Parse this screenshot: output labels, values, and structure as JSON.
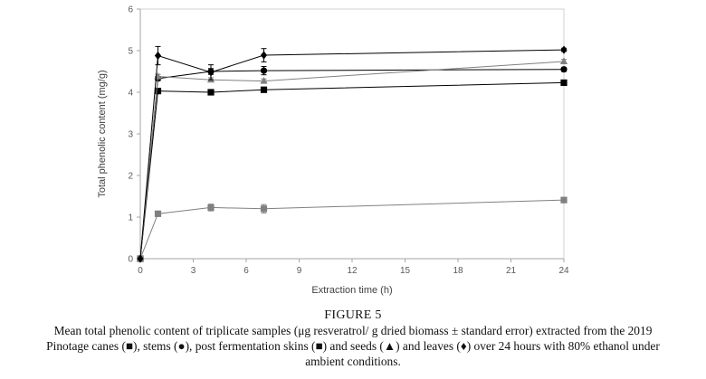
{
  "chart_data": {
    "type": "line",
    "title": "",
    "xlabel": "Extraction time (h)",
    "ylabel": "Total phenolic content (mg/g)",
    "xlim": [
      0,
      24
    ],
    "ylim": [
      0,
      6
    ],
    "xticks": [
      "0",
      "3",
      "6",
      "9",
      "12",
      "15",
      "18",
      "21",
      "24"
    ],
    "yticks": [
      "0",
      "1",
      "2",
      "3",
      "4",
      "5",
      "6"
    ],
    "grid": false,
    "x": [
      0,
      1,
      4,
      7,
      24
    ],
    "series": [
      {
        "name": "canes",
        "marker": "square",
        "color": "#000000",
        "values": [
          0,
          4.03,
          4.0,
          4.06,
          4.23
        ],
        "errors": [
          0,
          0.05,
          0.05,
          0.05,
          0.04
        ]
      },
      {
        "name": "stems",
        "marker": "circle",
        "color": "#000000",
        "values": [
          0,
          4.33,
          4.5,
          4.52,
          4.55
        ],
        "errors": [
          0,
          0.05,
          0.07,
          0.1,
          0.05
        ]
      },
      {
        "name": "post fermentation skins",
        "marker": "square",
        "color": "#808080",
        "values": [
          0,
          1.08,
          1.23,
          1.2,
          1.41
        ],
        "errors": [
          0,
          0.03,
          0.08,
          0.1,
          0.03
        ]
      },
      {
        "name": "seeds",
        "marker": "triangle",
        "color": "#808080",
        "values": [
          0,
          4.38,
          4.3,
          4.27,
          4.74
        ],
        "errors": [
          0,
          0.05,
          0.05,
          0.05,
          0.05
        ]
      },
      {
        "name": "leaves",
        "marker": "diamond",
        "color": "#000000",
        "values": [
          0,
          4.88,
          4.48,
          4.89,
          5.02
        ],
        "errors": [
          0,
          0.22,
          0.18,
          0.16,
          0.04
        ]
      }
    ]
  },
  "caption": {
    "figure_label": "FIGURE 5",
    "line1": "Mean total phenolic content of triplicate samples (μg resveratrol/ g dried biomass ± standard error) extracted from the 2019",
    "line2": "Pinotage canes (■), stems (●), post fermentation skins (■) and seeds (▲) and leaves (♦) over 24 hours with 80% ethanol under",
    "line3": "ambient conditions."
  }
}
